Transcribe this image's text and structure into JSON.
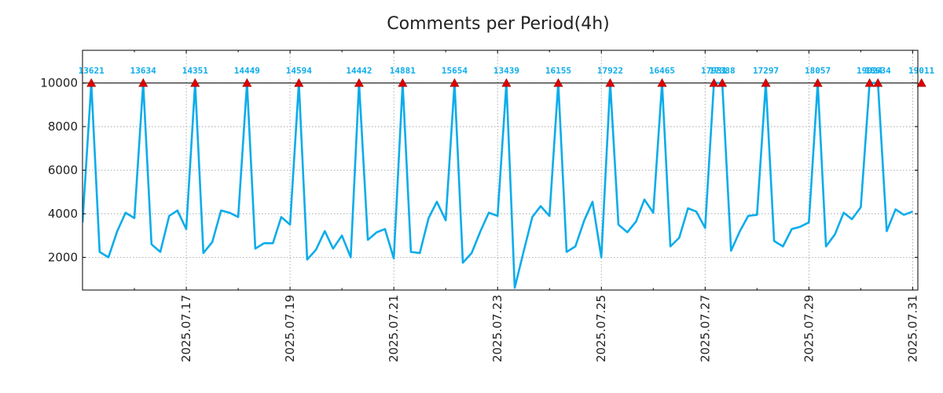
{
  "chart_data": {
    "type": "line",
    "title": "Comments per Period(4h)",
    "xlabel": "",
    "ylabel": "",
    "x_tick_labels": [
      "2025.07.17",
      "2025.07.19",
      "2025.07.21",
      "2025.07.23",
      "2025.07.25",
      "2025.07.27",
      "2025.07.29",
      "2025.07.31"
    ],
    "x_tick_days": [
      2,
      4,
      6,
      8,
      10,
      12,
      14,
      16
    ],
    "x_range_days": [
      0.0,
      16.1
    ],
    "y_ticks": [
      2000,
      4000,
      6000,
      8000,
      10000
    ],
    "y_range": [
      500,
      11500
    ],
    "threshold": 10000,
    "grid": true,
    "series": [
      {
        "name": "comments",
        "color": "#0bacea",
        "x_days": [
          0.0,
          0.17,
          0.33,
          0.5,
          0.67,
          0.83,
          1.0,
          1.17,
          1.33,
          1.5,
          1.67,
          1.83,
          2.0,
          2.17,
          2.33,
          2.5,
          2.67,
          2.83,
          3.0,
          3.17,
          3.33,
          3.5,
          3.67,
          3.83,
          4.0,
          4.17,
          4.33,
          4.5,
          4.67,
          4.83,
          5.0,
          5.17,
          5.33,
          5.5,
          5.67,
          5.83,
          6.0,
          6.17,
          6.33,
          6.5,
          6.67,
          6.83,
          7.0,
          7.17,
          7.33,
          7.5,
          7.67,
          7.83,
          8.0,
          8.17,
          8.33,
          8.5,
          8.67,
          8.83,
          9.0,
          9.17,
          9.33,
          9.5,
          9.67,
          9.83,
          10.0,
          10.17,
          10.33,
          10.5,
          10.67,
          10.83,
          11.0,
          11.17,
          11.33,
          11.5,
          11.67,
          11.83,
          12.0,
          12.17,
          12.33,
          12.5,
          12.67,
          12.83,
          13.0,
          13.17,
          13.33,
          13.5,
          13.67,
          13.83,
          14.0,
          14.17,
          14.33,
          14.5,
          14.67,
          14.83,
          15.0,
          15.17,
          15.33,
          15.5,
          15.67,
          15.83,
          16.0
        ],
        "values": [
          3600,
          10000,
          2250,
          2000,
          3200,
          4050,
          3800,
          10000,
          2600,
          2250,
          3900,
          4150,
          3300,
          10000,
          2200,
          2700,
          4150,
          4050,
          3850,
          10000,
          2400,
          2650,
          2650,
          3850,
          3500,
          10000,
          1900,
          2350,
          3200,
          2400,
          3000,
          2000,
          10000,
          2800,
          3150,
          3300,
          1950,
          10000,
          2250,
          2200,
          3800,
          4550,
          3700,
          10000,
          1750,
          2200,
          3200,
          4050,
          3900,
          10000,
          600,
          2250,
          3850,
          4350,
          3900,
          10000,
          2250,
          2500,
          3700,
          4550,
          2000,
          10000,
          3500,
          3150,
          3650,
          4650,
          4050,
          10000,
          2500,
          2900,
          4250,
          4100,
          3350,
          10000,
          10000,
          2300,
          3200,
          3900,
          3950,
          10000,
          2750,
          2500,
          3300,
          3400,
          3600,
          10000,
          2500,
          3050,
          4050,
          3750,
          4300,
          10000,
          10000,
          3200,
          4200,
          3950,
          4100
        ],
        "peaks_x_days": [
          0.17,
          1.17,
          2.17,
          3.17,
          4.17,
          5.33,
          6.17,
          7.17,
          8.17,
          9.17,
          10.17,
          11.17,
          12.17,
          12.33,
          13.17,
          14.17,
          15.17,
          15.33,
          16.17
        ],
        "peak_labels": [
          "13621",
          "13634",
          "14351",
          "14449",
          "14594",
          "14442",
          "14881",
          "15654",
          "13439",
          "16155",
          "17922",
          "16465",
          "17931",
          "17388",
          "17297",
          "18057",
          "19024",
          "18634",
          "19011"
        ],
        "peak_label_color": "#0bacea",
        "marker_color": "#dd0000"
      }
    ]
  }
}
